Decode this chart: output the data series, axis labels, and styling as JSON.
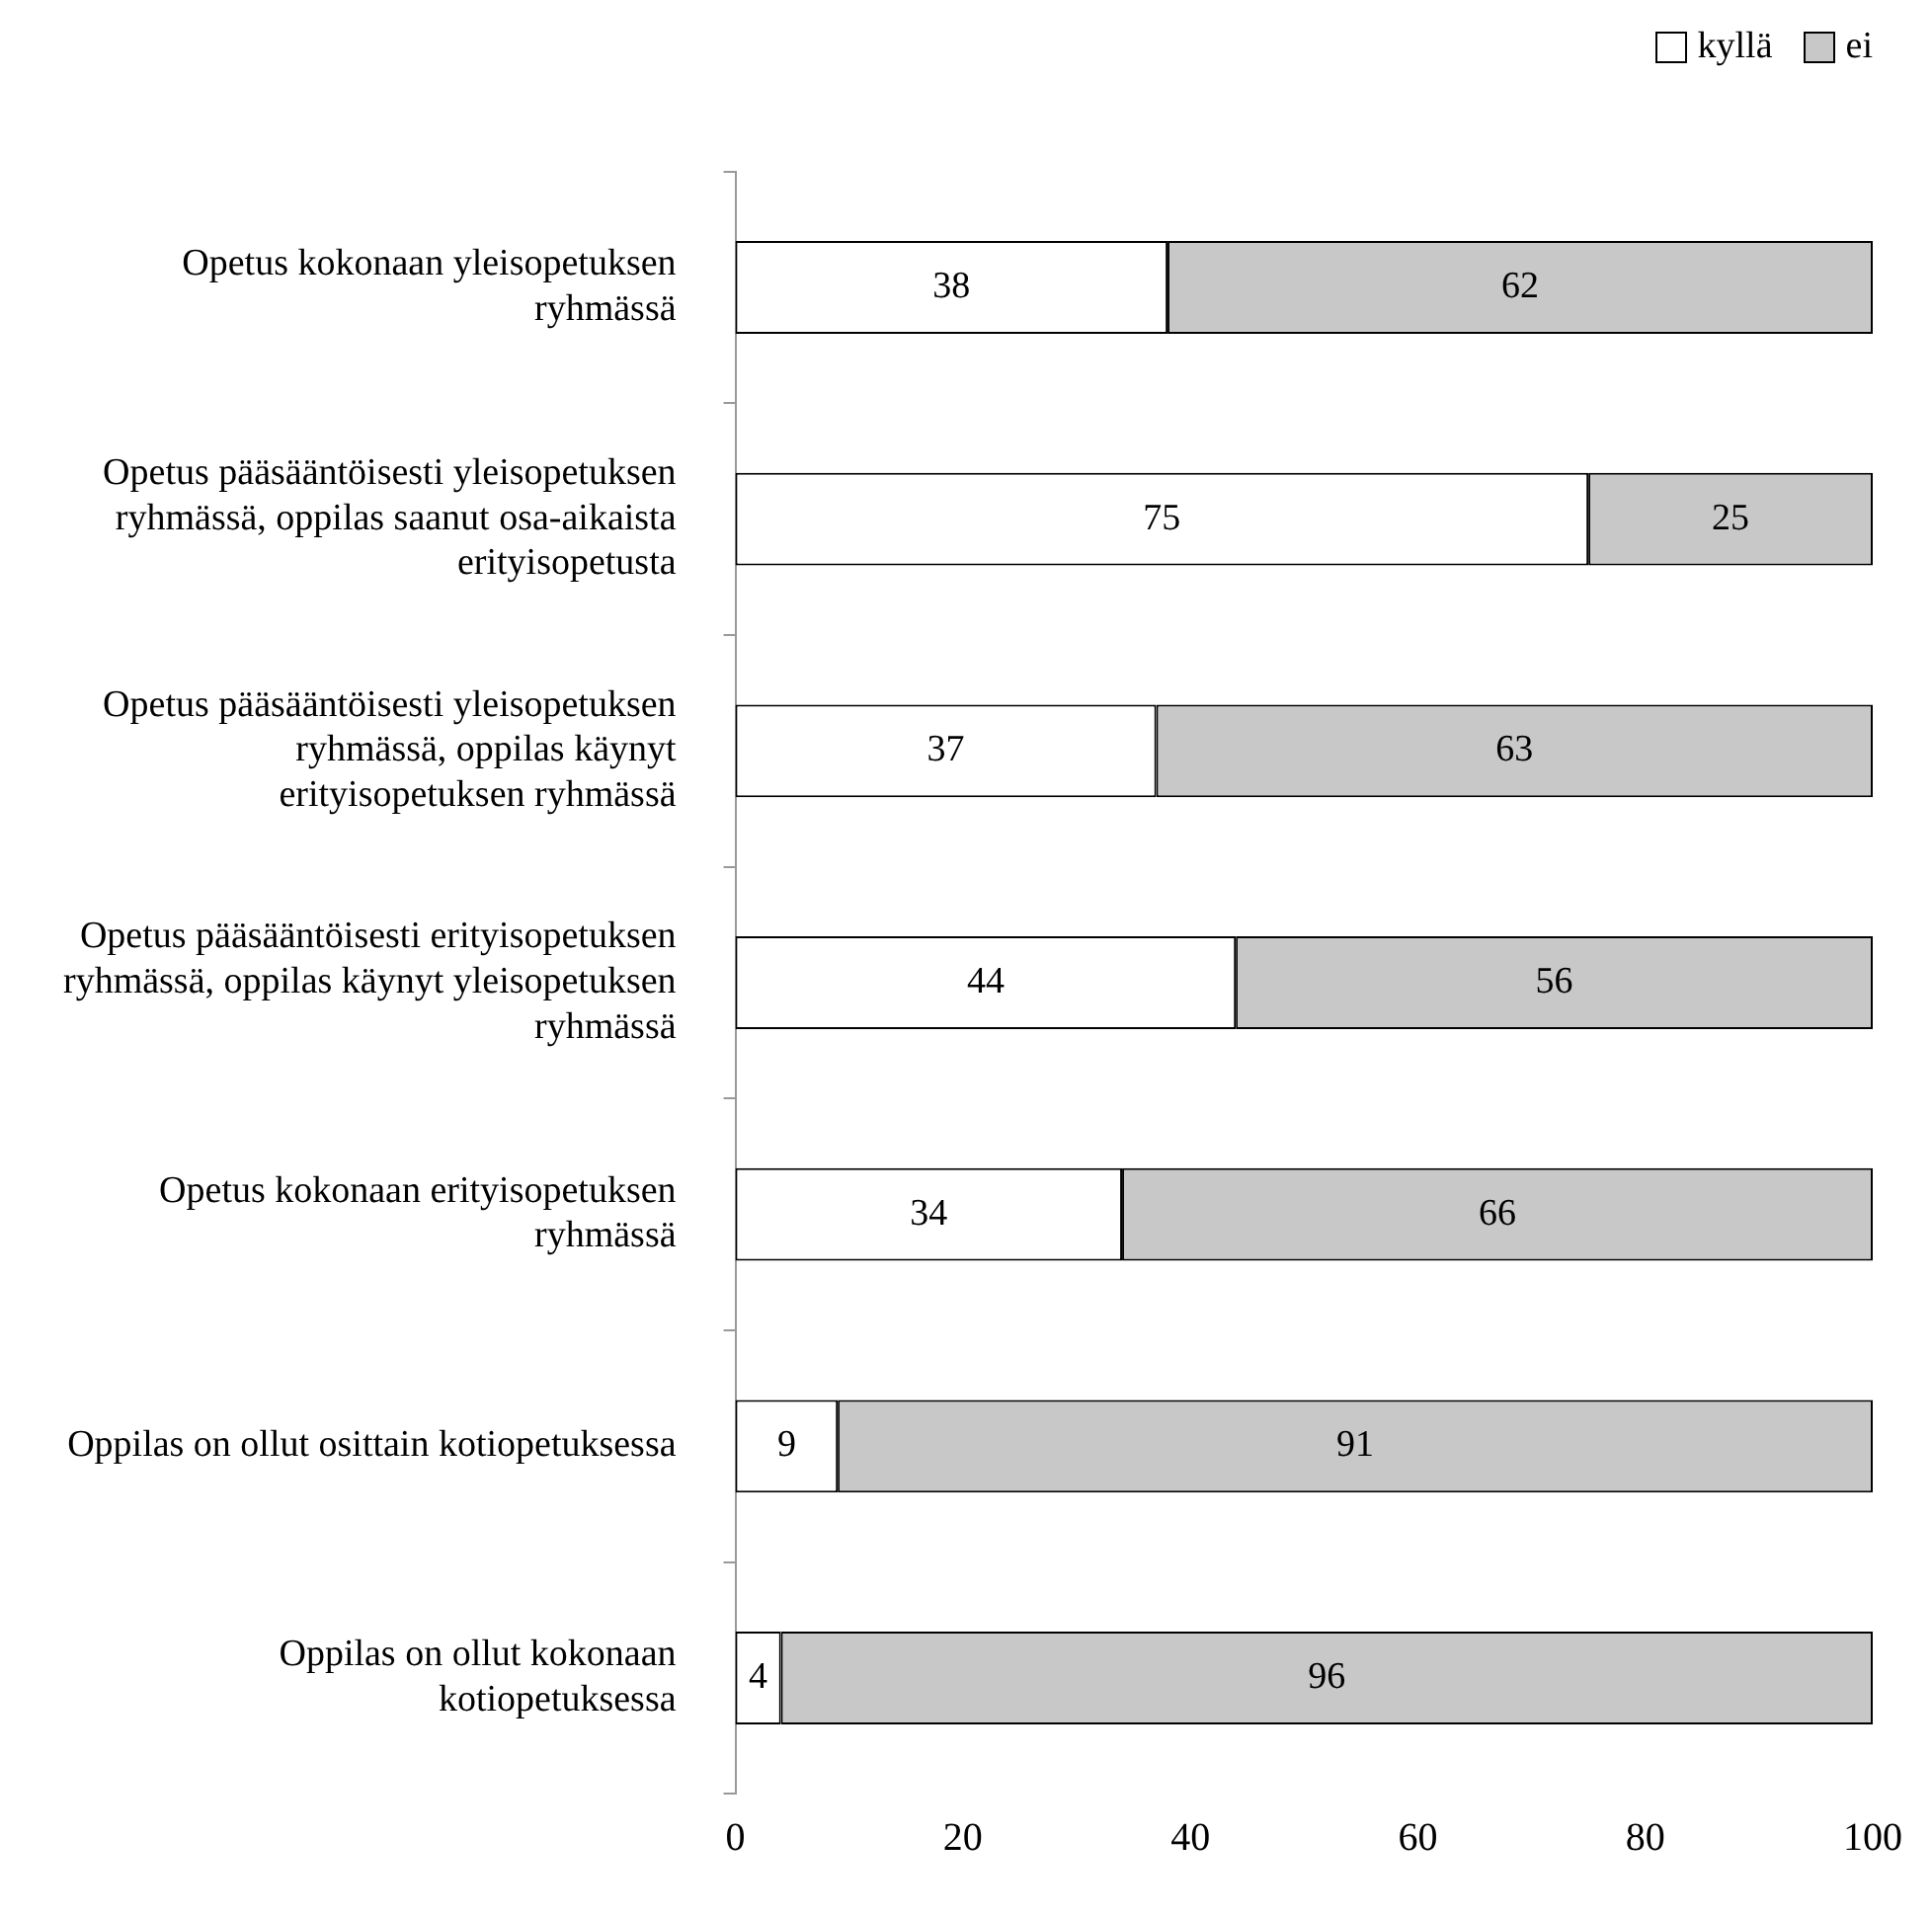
{
  "chart_data": {
    "type": "bar",
    "orientation": "horizontal",
    "stacked": true,
    "categories": [
      "Opetus kokonaan yleisopetuksen ryhmässä",
      "Opetus pääsääntöisesti yleisopetuksen ryhmässä, oppilas saanut osa-aikaista erityisopetusta",
      "Opetus pääsääntöisesti yleisopetuksen ryhmässä, oppilas käynyt erityisopetuksen ryhmässä",
      "Opetus pääsääntöisesti erityisopetuksen ryhmässä, oppilas käynyt yleisopetuksen ryhmässä",
      "Opetus kokonaan erityisopetuksen ryhmässä",
      "Oppilas on ollut osittain kotiopetuksessa",
      "Oppilas on ollut kokonaan kotiopetuksessa"
    ],
    "series": [
      {
        "name": "kyllä",
        "color": "#ffffff",
        "values": [
          38,
          75,
          37,
          44,
          34,
          9,
          4
        ]
      },
      {
        "name": "ei",
        "color": "#c8c8c8",
        "values": [
          62,
          25,
          63,
          56,
          66,
          91,
          96
        ]
      }
    ],
    "xlim": [
      0,
      100
    ],
    "xticks": [
      0,
      20,
      40,
      60,
      80,
      100
    ],
    "data_labels": true,
    "legend": "top right",
    "grid": false
  }
}
